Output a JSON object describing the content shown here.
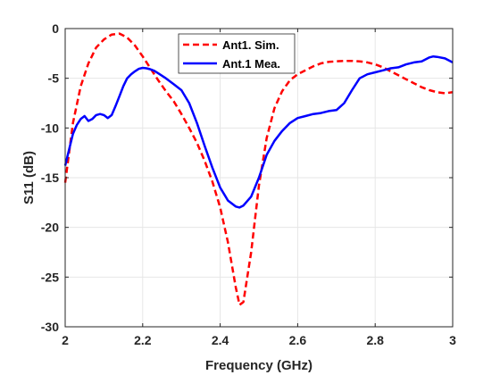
{
  "chart_data": {
    "type": "line",
    "title": "",
    "xlabel": "Frequency (GHz)",
    "ylabel": "S11 (dB)",
    "xlim": [
      2,
      3
    ],
    "ylim": [
      -30,
      0
    ],
    "xticks": [
      2,
      2.2,
      2.4,
      2.6,
      2.8,
      3
    ],
    "xtick_labels": [
      "2",
      "2.2",
      "2.4",
      "2.6",
      "2.8",
      "3"
    ],
    "yticks": [
      0,
      -5,
      -10,
      -15,
      -20,
      -25,
      -30
    ],
    "ytick_labels": [
      "0",
      "-5",
      "-10",
      "-15",
      "-20",
      "-25",
      "-30"
    ],
    "grid": true,
    "legend_position": "top-center",
    "series": [
      {
        "name": "Ant1. Sim.",
        "color": "#ff0000",
        "style": "dashed",
        "x": [
          2.0,
          2.02,
          2.04,
          2.06,
          2.08,
          2.1,
          2.12,
          2.14,
          2.16,
          2.18,
          2.2,
          2.22,
          2.24,
          2.26,
          2.28,
          2.3,
          2.32,
          2.34,
          2.36,
          2.38,
          2.4,
          2.42,
          2.44,
          2.45,
          2.46,
          2.48,
          2.5,
          2.52,
          2.54,
          2.56,
          2.58,
          2.6,
          2.62,
          2.64,
          2.66,
          2.68,
          2.7,
          2.72,
          2.74,
          2.76,
          2.78,
          2.8,
          2.82,
          2.84,
          2.86,
          2.88,
          2.9,
          2.92,
          2.94,
          2.96,
          2.98,
          3.0
        ],
        "y": [
          -15.5,
          -9.5,
          -5.8,
          -3.5,
          -1.9,
          -1.1,
          -0.6,
          -0.5,
          -0.9,
          -1.7,
          -2.8,
          -4.0,
          -5.2,
          -6.3,
          -7.3,
          -8.6,
          -10.0,
          -11.5,
          -13.3,
          -15.4,
          -18.0,
          -21.5,
          -26.0,
          -27.8,
          -27.5,
          -22.5,
          -15.8,
          -11.0,
          -8.0,
          -6.3,
          -5.2,
          -4.6,
          -4.2,
          -3.8,
          -3.5,
          -3.35,
          -3.3,
          -3.25,
          -3.25,
          -3.3,
          -3.4,
          -3.6,
          -3.9,
          -4.3,
          -4.7,
          -5.1,
          -5.5,
          -5.9,
          -6.2,
          -6.4,
          -6.5,
          -6.4
        ]
      },
      {
        "name": "Ant.1 Mea.",
        "color": "#0000ff",
        "style": "solid",
        "x": [
          2.0,
          2.01,
          2.02,
          2.03,
          2.04,
          2.05,
          2.06,
          2.07,
          2.08,
          2.09,
          2.1,
          2.11,
          2.12,
          2.13,
          2.14,
          2.15,
          2.16,
          2.17,
          2.18,
          2.19,
          2.2,
          2.21,
          2.22,
          2.23,
          2.24,
          2.26,
          2.28,
          2.3,
          2.32,
          2.34,
          2.36,
          2.38,
          2.4,
          2.42,
          2.44,
          2.45,
          2.46,
          2.48,
          2.5,
          2.52,
          2.54,
          2.56,
          2.58,
          2.6,
          2.62,
          2.64,
          2.66,
          2.68,
          2.7,
          2.72,
          2.74,
          2.76,
          2.78,
          2.8,
          2.82,
          2.84,
          2.86,
          2.88,
          2.9,
          2.92,
          2.94,
          2.95,
          2.96,
          2.98,
          3.0
        ],
        "y": [
          -13.8,
          -12.2,
          -10.6,
          -9.7,
          -9.1,
          -8.8,
          -9.3,
          -9.1,
          -8.7,
          -8.6,
          -8.7,
          -9.0,
          -8.7,
          -7.8,
          -6.8,
          -5.8,
          -5.0,
          -4.6,
          -4.3,
          -4.05,
          -3.95,
          -4.0,
          -4.1,
          -4.25,
          -4.5,
          -5.0,
          -5.6,
          -6.2,
          -7.5,
          -9.5,
          -11.8,
          -14.0,
          -16.0,
          -17.3,
          -17.9,
          -18.0,
          -17.8,
          -16.9,
          -15.0,
          -12.7,
          -11.3,
          -10.3,
          -9.5,
          -9.0,
          -8.8,
          -8.6,
          -8.5,
          -8.3,
          -8.2,
          -7.5,
          -6.2,
          -5.0,
          -4.6,
          -4.4,
          -4.2,
          -4.0,
          -3.9,
          -3.6,
          -3.4,
          -3.3,
          -2.9,
          -2.8,
          -2.85,
          -3.0,
          -3.4
        ]
      }
    ]
  }
}
